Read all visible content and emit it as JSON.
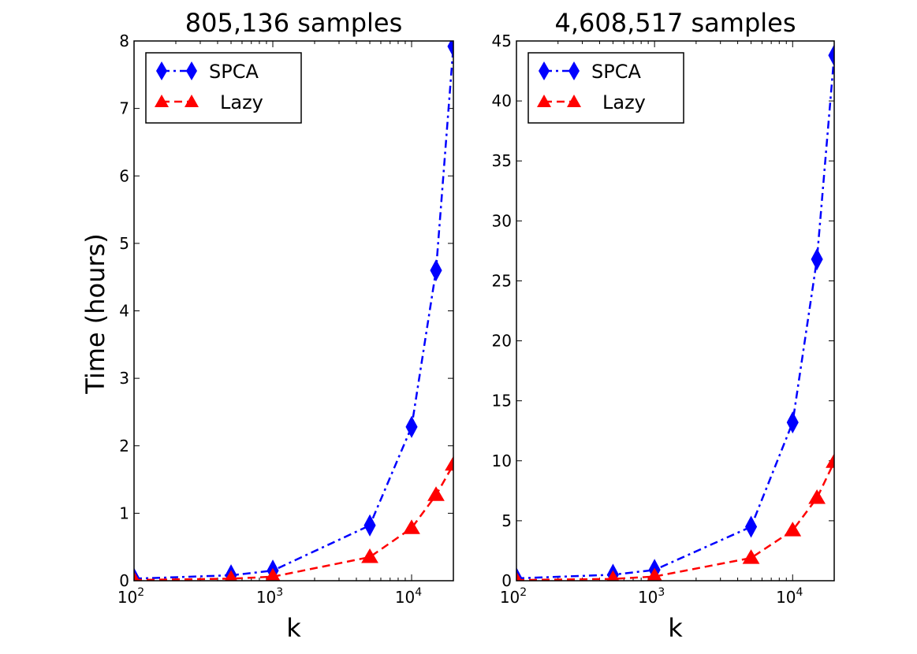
{
  "figure": {
    "ylabel": "Time (hours)"
  },
  "chart_data": [
    {
      "type": "line",
      "title": "805,136 samples",
      "xlabel": "k",
      "ylabel": "Time (hours)",
      "xscale": "log",
      "xlim": [
        100,
        20000
      ],
      "ylim": [
        0,
        8
      ],
      "yticks": [
        "0",
        "1",
        "2",
        "3",
        "4",
        "5",
        "6",
        "7",
        "8"
      ],
      "xticks": [
        {
          "base": "10",
          "exp": "2",
          "value": 100
        },
        {
          "base": "10",
          "exp": "3",
          "value": 1000
        },
        {
          "base": "10",
          "exp": "4",
          "value": 10000
        }
      ],
      "legend_position": "top-left",
      "x": [
        100,
        500,
        1000,
        5000,
        10000,
        15000,
        20000
      ],
      "series": [
        {
          "name": "SPCA",
          "color": "#0000ff",
          "marker": "diamond",
          "linestyle": "dashdot",
          "values": [
            0.03,
            0.08,
            0.15,
            0.82,
            2.28,
            4.6,
            7.92
          ]
        },
        {
          "name": "Lazy",
          "color": "#ff0000",
          "marker": "triangle",
          "linestyle": "dashed",
          "values": [
            0.01,
            0.03,
            0.06,
            0.35,
            0.78,
            1.27,
            1.72
          ]
        }
      ]
    },
    {
      "type": "line",
      "title": "4,608,517 samples",
      "xlabel": "k",
      "ylabel": "",
      "xscale": "log",
      "xlim": [
        100,
        20000
      ],
      "ylim": [
        0,
        45
      ],
      "yticks": [
        "0",
        "5",
        "10",
        "15",
        "20",
        "25",
        "30",
        "35",
        "40",
        "45"
      ],
      "xticks": [
        {
          "base": "10",
          "exp": "2",
          "value": 100
        },
        {
          "base": "10",
          "exp": "3",
          "value": 1000
        },
        {
          "base": "10",
          "exp": "4",
          "value": 10000
        }
      ],
      "legend_position": "top-left",
      "x": [
        100,
        500,
        1000,
        5000,
        10000,
        15000,
        20000
      ],
      "series": [
        {
          "name": "SPCA",
          "color": "#0000ff",
          "marker": "diamond",
          "linestyle": "dashdot",
          "values": [
            0.2,
            0.5,
            0.9,
            4.5,
            13.2,
            26.8,
            43.8
          ]
        },
        {
          "name": "Lazy",
          "color": "#ff0000",
          "marker": "triangle",
          "linestyle": "dashed",
          "values": [
            0.05,
            0.15,
            0.35,
            1.9,
            4.2,
            6.9,
            9.9
          ]
        }
      ]
    }
  ]
}
